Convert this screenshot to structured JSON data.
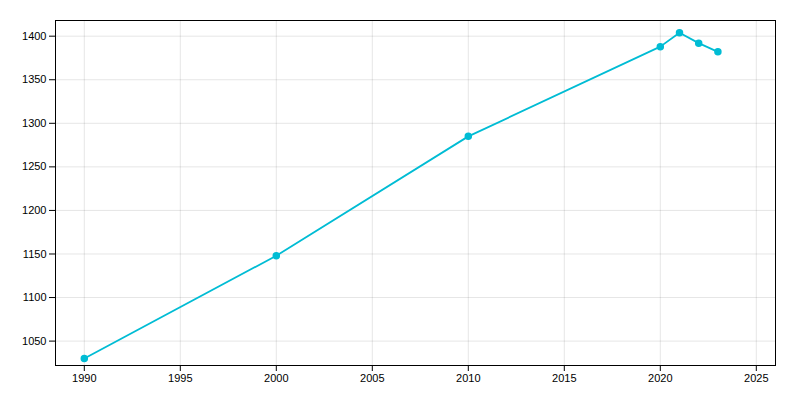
{
  "chart_data": {
    "type": "line",
    "x": [
      1990,
      2000,
      2010,
      2020,
      2021,
      2022,
      2023
    ],
    "values": [
      1030,
      1148,
      1285,
      1388,
      1404,
      1392,
      1382
    ],
    "color": "#00bcd4",
    "marker": "o",
    "xlim": [
      1988.5,
      2026
    ],
    "ylim": [
      1022,
      1418
    ],
    "xticks": [
      1990,
      1995,
      2000,
      2005,
      2010,
      2015,
      2020,
      2025
    ],
    "yticks": [
      1050,
      1100,
      1150,
      1200,
      1250,
      1300,
      1350,
      1400
    ],
    "grid": true
  }
}
